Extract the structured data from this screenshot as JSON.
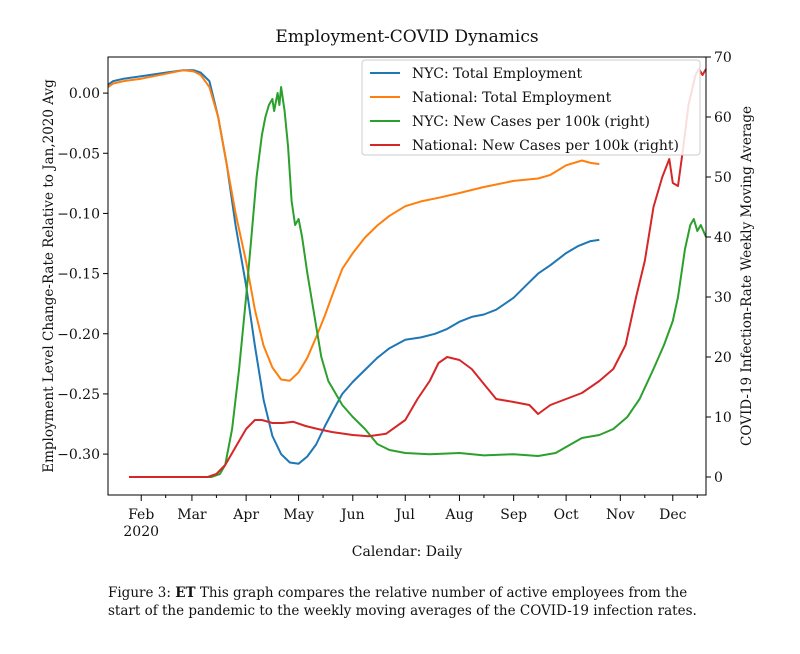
{
  "chart_data": {
    "type": "line",
    "title": "Employment-COVID Dynamics",
    "xlabel": "Calendar: Daily",
    "ylabel": "Employment Level Change-Rate Relative to Jan,2020 Avg",
    "ylabel_right": "COVID-19 Infection-Rate Weekly Moving Average",
    "x_ticks": [
      {
        "label": "Feb",
        "sub": "2020",
        "x": "2020-02-01"
      },
      {
        "label": "Mar",
        "sub": "",
        "x": "2020-03-01"
      },
      {
        "label": "Apr",
        "sub": "",
        "x": "2020-04-01"
      },
      {
        "label": "May",
        "sub": "",
        "x": "2020-05-01"
      },
      {
        "label": "Jun",
        "sub": "",
        "x": "2020-06-01"
      },
      {
        "label": "Jul",
        "sub": "",
        "x": "2020-07-01"
      },
      {
        "label": "Aug",
        "sub": "",
        "x": "2020-08-01"
      },
      {
        "label": "Sep",
        "sub": "",
        "x": "2020-09-01"
      },
      {
        "label": "Oct",
        "sub": "",
        "x": "2020-10-01"
      },
      {
        "label": "Nov",
        "sub": "",
        "x": "2020-11-01"
      },
      {
        "label": "Dec",
        "sub": "",
        "x": "2020-12-01"
      }
    ],
    "xlim": [
      "2020-01-13",
      "2020-12-20"
    ],
    "y_ticks": [
      {
        "label": "0.00",
        "v": 0.0
      },
      {
        "label": "−0.05",
        "v": -0.05
      },
      {
        "label": "−0.10",
        "v": -0.1
      },
      {
        "label": "−0.15",
        "v": -0.15
      },
      {
        "label": "−0.20",
        "v": -0.2
      },
      {
        "label": "−0.25",
        "v": -0.25
      },
      {
        "label": "−0.30",
        "v": -0.3
      }
    ],
    "ylim": [
      -0.334,
      0.03
    ],
    "y2_ticks": [
      0,
      10,
      20,
      30,
      40,
      50,
      60,
      70
    ],
    "y2lim": [
      -3,
      70
    ],
    "legend": "upper right",
    "series": [
      {
        "name": "NYC: Total Employment",
        "color": "#1f77b4",
        "axis": "left",
        "points": [
          [
            "2020-01-13",
            0.007
          ],
          [
            "2020-01-16",
            0.01
          ],
          [
            "2020-01-22",
            0.012
          ],
          [
            "2020-02-01",
            0.014
          ],
          [
            "2020-02-15",
            0.017
          ],
          [
            "2020-02-25",
            0.019
          ],
          [
            "2020-03-02",
            0.019
          ],
          [
            "2020-03-06",
            0.017
          ],
          [
            "2020-03-11",
            0.01
          ],
          [
            "2020-03-16",
            -0.02
          ],
          [
            "2020-03-21",
            -0.06
          ],
          [
            "2020-03-26",
            -0.11
          ],
          [
            "2020-04-01",
            -0.16
          ],
          [
            "2020-04-06",
            -0.21
          ],
          [
            "2020-04-11",
            -0.255
          ],
          [
            "2020-04-16",
            -0.285
          ],
          [
            "2020-04-21",
            -0.3
          ],
          [
            "2020-04-26",
            -0.307
          ],
          [
            "2020-05-01",
            -0.308
          ],
          [
            "2020-05-06",
            -0.302
          ],
          [
            "2020-05-11",
            -0.292
          ],
          [
            "2020-05-16",
            -0.277
          ],
          [
            "2020-05-21",
            -0.263
          ],
          [
            "2020-05-26",
            -0.25
          ],
          [
            "2020-06-01",
            -0.24
          ],
          [
            "2020-06-08",
            -0.23
          ],
          [
            "2020-06-15",
            -0.22
          ],
          [
            "2020-06-22",
            -0.212
          ],
          [
            "2020-07-01",
            -0.205
          ],
          [
            "2020-07-10",
            -0.203
          ],
          [
            "2020-07-18",
            -0.2
          ],
          [
            "2020-07-25",
            -0.196
          ],
          [
            "2020-08-01",
            -0.19
          ],
          [
            "2020-08-08",
            -0.186
          ],
          [
            "2020-08-15",
            -0.184
          ],
          [
            "2020-08-22",
            -0.18
          ],
          [
            "2020-09-01",
            -0.17
          ],
          [
            "2020-09-08",
            -0.16
          ],
          [
            "2020-09-15",
            -0.15
          ],
          [
            "2020-09-22",
            -0.143
          ],
          [
            "2020-10-01",
            -0.133
          ],
          [
            "2020-10-08",
            -0.127
          ],
          [
            "2020-10-15",
            -0.123
          ],
          [
            "2020-10-20",
            -0.122
          ]
        ]
      },
      {
        "name": "National: Total Employment",
        "color": "#ff7f0e",
        "axis": "left",
        "points": [
          [
            "2020-01-13",
            0.005
          ],
          [
            "2020-01-16",
            0.008
          ],
          [
            "2020-01-22",
            0.01
          ],
          [
            "2020-02-01",
            0.012
          ],
          [
            "2020-02-15",
            0.016
          ],
          [
            "2020-02-25",
            0.019
          ],
          [
            "2020-03-02",
            0.018
          ],
          [
            "2020-03-06",
            0.015
          ],
          [
            "2020-03-11",
            0.005
          ],
          [
            "2020-03-16",
            -0.02
          ],
          [
            "2020-03-21",
            -0.06
          ],
          [
            "2020-03-26",
            -0.1
          ],
          [
            "2020-04-01",
            -0.14
          ],
          [
            "2020-04-06",
            -0.18
          ],
          [
            "2020-04-11",
            -0.21
          ],
          [
            "2020-04-16",
            -0.228
          ],
          [
            "2020-04-21",
            -0.238
          ],
          [
            "2020-04-26",
            -0.239
          ],
          [
            "2020-05-01",
            -0.232
          ],
          [
            "2020-05-06",
            -0.22
          ],
          [
            "2020-05-11",
            -0.203
          ],
          [
            "2020-05-16",
            -0.185
          ],
          [
            "2020-05-21",
            -0.165
          ],
          [
            "2020-05-26",
            -0.146
          ],
          [
            "2020-06-01",
            -0.133
          ],
          [
            "2020-06-08",
            -0.12
          ],
          [
            "2020-06-15",
            -0.11
          ],
          [
            "2020-06-22",
            -0.102
          ],
          [
            "2020-07-01",
            -0.094
          ],
          [
            "2020-07-10",
            -0.09
          ],
          [
            "2020-07-20",
            -0.087
          ],
          [
            "2020-08-01",
            -0.083
          ],
          [
            "2020-08-15",
            -0.078
          ],
          [
            "2020-09-01",
            -0.073
          ],
          [
            "2020-09-15",
            -0.071
          ],
          [
            "2020-09-22",
            -0.068
          ],
          [
            "2020-10-01",
            -0.06
          ],
          [
            "2020-10-10",
            -0.056
          ],
          [
            "2020-10-15",
            -0.058
          ],
          [
            "2020-10-20",
            -0.059
          ]
        ]
      },
      {
        "name": "NYC: New Cases per 100k (right)",
        "color": "#2ca02c",
        "axis": "right",
        "points": [
          [
            "2020-01-25",
            0
          ],
          [
            "2020-03-12",
            0
          ],
          [
            "2020-03-17",
            0.5
          ],
          [
            "2020-03-20",
            2
          ],
          [
            "2020-03-24",
            8
          ],
          [
            "2020-03-28",
            18
          ],
          [
            "2020-04-01",
            30
          ],
          [
            "2020-04-04",
            40
          ],
          [
            "2020-04-07",
            50
          ],
          [
            "2020-04-10",
            57
          ],
          [
            "2020-04-12",
            60
          ],
          [
            "2020-04-14",
            62
          ],
          [
            "2020-04-16",
            63
          ],
          [
            "2020-04-17",
            61
          ],
          [
            "2020-04-19",
            64
          ],
          [
            "2020-04-20",
            62
          ],
          [
            "2020-04-21",
            65
          ],
          [
            "2020-04-23",
            61
          ],
          [
            "2020-04-25",
            55
          ],
          [
            "2020-04-27",
            46
          ],
          [
            "2020-04-29",
            42
          ],
          [
            "2020-05-01",
            43
          ],
          [
            "2020-05-03",
            40
          ],
          [
            "2020-05-06",
            34
          ],
          [
            "2020-05-10",
            27
          ],
          [
            "2020-05-14",
            20
          ],
          [
            "2020-05-18",
            16
          ],
          [
            "2020-05-22",
            14
          ],
          [
            "2020-05-26",
            12
          ],
          [
            "2020-06-01",
            10
          ],
          [
            "2020-06-08",
            8
          ],
          [
            "2020-06-15",
            5.5
          ],
          [
            "2020-06-22",
            4.5
          ],
          [
            "2020-07-01",
            4
          ],
          [
            "2020-07-15",
            3.8
          ],
          [
            "2020-08-01",
            4
          ],
          [
            "2020-08-15",
            3.6
          ],
          [
            "2020-09-01",
            3.8
          ],
          [
            "2020-09-15",
            3.5
          ],
          [
            "2020-09-25",
            4
          ],
          [
            "2020-10-01",
            5
          ],
          [
            "2020-10-10",
            6.5
          ],
          [
            "2020-10-20",
            7
          ],
          [
            "2020-10-28",
            8
          ],
          [
            "2020-11-05",
            10
          ],
          [
            "2020-11-12",
            13
          ],
          [
            "2020-11-20",
            18
          ],
          [
            "2020-11-26",
            22
          ],
          [
            "2020-12-01",
            26
          ],
          [
            "2020-12-04",
            30
          ],
          [
            "2020-12-08",
            38
          ],
          [
            "2020-12-11",
            42
          ],
          [
            "2020-12-13",
            43
          ],
          [
            "2020-12-15",
            41
          ],
          [
            "2020-12-17",
            42
          ],
          [
            "2020-12-20",
            40
          ]
        ]
      },
      {
        "name": "National: New Cases per 100k (right)",
        "color": "#d62728",
        "axis": "right",
        "points": [
          [
            "2020-01-25",
            0
          ],
          [
            "2020-03-10",
            0
          ],
          [
            "2020-03-15",
            0.5
          ],
          [
            "2020-03-20",
            2
          ],
          [
            "2020-03-26",
            5
          ],
          [
            "2020-04-01",
            8
          ],
          [
            "2020-04-06",
            9.5
          ],
          [
            "2020-04-10",
            9.5
          ],
          [
            "2020-04-16",
            9
          ],
          [
            "2020-04-22",
            9
          ],
          [
            "2020-04-28",
            9.2
          ],
          [
            "2020-05-05",
            8.5
          ],
          [
            "2020-05-12",
            8
          ],
          [
            "2020-05-20",
            7.5
          ],
          [
            "2020-06-01",
            7
          ],
          [
            "2020-06-10",
            6.8
          ],
          [
            "2020-06-20",
            7.2
          ],
          [
            "2020-07-01",
            9.5
          ],
          [
            "2020-07-08",
            13
          ],
          [
            "2020-07-15",
            16
          ],
          [
            "2020-07-20",
            19
          ],
          [
            "2020-07-25",
            20
          ],
          [
            "2020-08-01",
            19.5
          ],
          [
            "2020-08-08",
            18
          ],
          [
            "2020-08-15",
            15.5
          ],
          [
            "2020-08-22",
            13
          ],
          [
            "2020-09-01",
            12.5
          ],
          [
            "2020-09-10",
            12
          ],
          [
            "2020-09-15",
            10.5
          ],
          [
            "2020-09-22",
            12
          ],
          [
            "2020-10-01",
            13
          ],
          [
            "2020-10-10",
            14
          ],
          [
            "2020-10-20",
            16
          ],
          [
            "2020-10-28",
            18
          ],
          [
            "2020-11-04",
            22
          ],
          [
            "2020-11-10",
            30
          ],
          [
            "2020-11-15",
            36
          ],
          [
            "2020-11-20",
            45
          ],
          [
            "2020-11-25",
            50
          ],
          [
            "2020-11-29",
            53
          ],
          [
            "2020-12-01",
            49
          ],
          [
            "2020-12-04",
            48.5
          ],
          [
            "2020-12-07",
            55
          ],
          [
            "2020-12-10",
            62
          ],
          [
            "2020-12-14",
            67
          ],
          [
            "2020-12-16",
            68
          ],
          [
            "2020-12-18",
            67
          ],
          [
            "2020-12-20",
            68
          ]
        ]
      }
    ]
  },
  "caption": {
    "prefix": "Figure 3: ",
    "bold": "ET",
    "text": " This graph compares the relative number of active employees from the start of the pandemic to the weekly moving averages of the COVID-19 infection rates."
  }
}
